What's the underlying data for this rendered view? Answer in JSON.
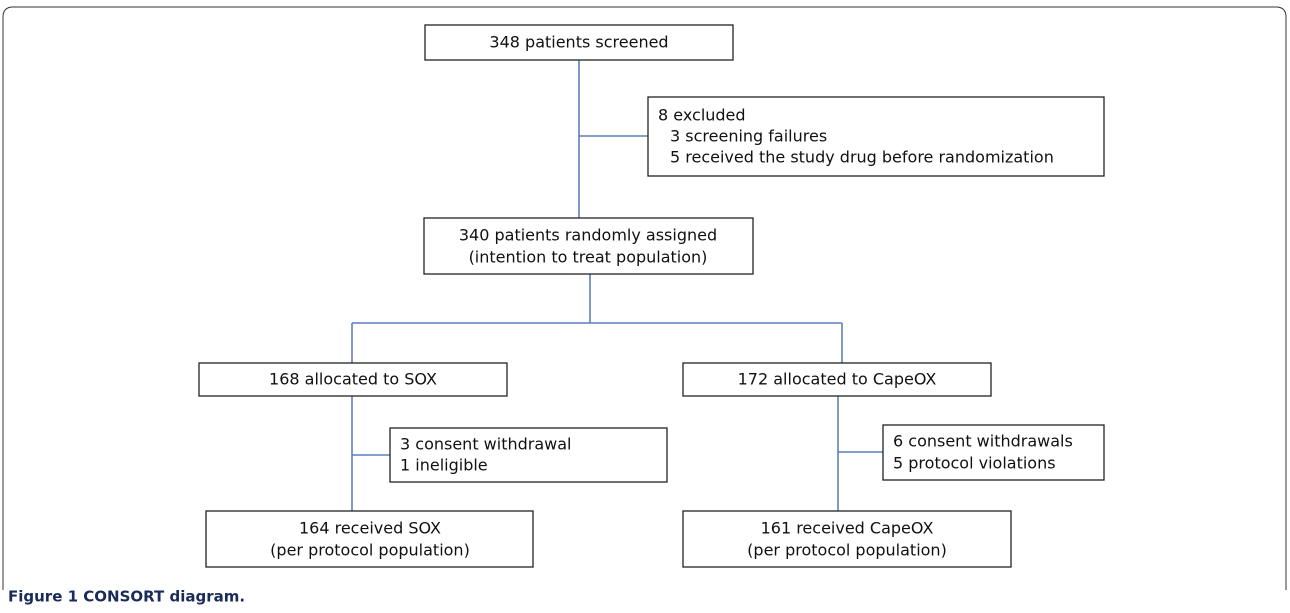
{
  "nodes": [
    {
      "lines": [
        "348 patients screened"
      ]
    },
    {
      "lines": [
        "8 excluded",
        "3 screening failures",
        "5 received the study drug before randomization"
      ]
    },
    {
      "lines": [
        "340 patients randomly assigned",
        "(intention to treat population)"
      ]
    },
    {
      "lines": [
        "168 allocated to SOX"
      ]
    },
    {
      "lines": [
        "172 allocated to CapeOX"
      ]
    },
    {
      "lines": [
        "3 consent withdrawal",
        "1 ineligible"
      ]
    },
    {
      "lines": [
        "6 consent withdrawals",
        "5 protocol violations"
      ]
    },
    {
      "lines": [
        "164 received SOX",
        "(per protocol population)"
      ]
    },
    {
      "lines": [
        "161 received CapeOX",
        "(per protocol population)"
      ]
    }
  ],
  "caption": "Figure 1 CONSORT diagram."
}
